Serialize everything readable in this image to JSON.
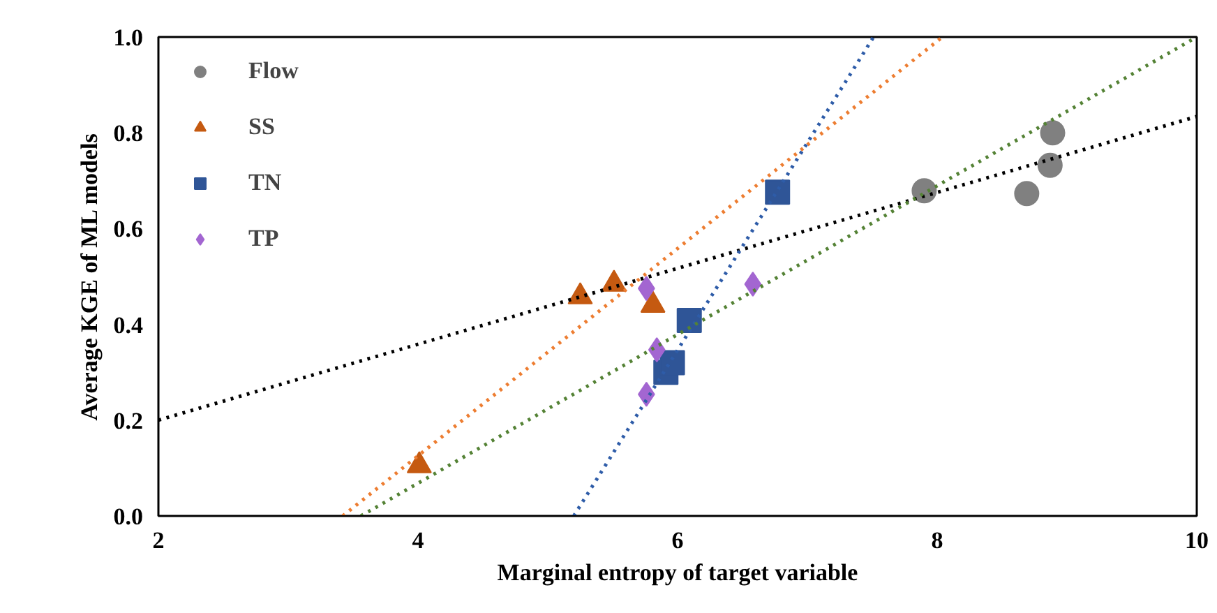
{
  "chart_data": {
    "type": "scatter",
    "xlabel": "Marginal entropy of target variable",
    "ylabel": "Average KGE of ML models",
    "xlim": [
      2,
      10
    ],
    "ylim": [
      0,
      1.0
    ],
    "xticks": [
      2,
      4,
      6,
      8,
      10
    ],
    "yticks": [
      {
        "value": 0,
        "label": "0.0"
      },
      {
        "value": 0.2,
        "label": "0.2"
      },
      {
        "value": 0.4,
        "label": "0.4"
      },
      {
        "value": 0.6,
        "label": "0.6"
      },
      {
        "value": 0.8,
        "label": "0.8"
      },
      {
        "value": 1.0,
        "label": "1.0"
      }
    ],
    "grid": false,
    "legend": "top left",
    "series": [
      {
        "name": "Flow",
        "color": "#808080",
        "marker": "circle",
        "x": [
          7.9,
          8.69,
          8.87,
          8.89
        ],
        "values": [
          0.679,
          0.673,
          0.732,
          0.8
        ]
      },
      {
        "name": "SS",
        "color": "#c55a11",
        "marker": "triangle",
        "x": [
          4.01,
          5.25,
          5.51,
          5.81
        ],
        "values": [
          0.105,
          0.458,
          0.484,
          0.44
        ]
      },
      {
        "name": "TN",
        "color": "#2f5597",
        "marker": "square",
        "x": [
          6.77,
          6.09,
          5.91,
          5.96
        ],
        "values": [
          0.676,
          0.408,
          0.3,
          0.32
        ]
      },
      {
        "name": "TP",
        "color": "#a366d1",
        "marker": "diamond",
        "x": [
          5.76,
          6.58,
          5.84,
          5.76
        ],
        "values": [
          0.475,
          0.484,
          0.347,
          0.254
        ]
      },
      {
        "type": "line",
        "line_style": "dotted",
        "color": "#000000",
        "x": [
          2,
          10
        ],
        "values": [
          0.2,
          0.834
        ]
      },
      {
        "type": "line",
        "line_style": "dotted",
        "color": "#ed7d31",
        "x": [
          3.42,
          8.04
        ],
        "values": [
          0,
          1.0
        ]
      },
      {
        "type": "line",
        "line_style": "dotted",
        "color": "#2e5ca8",
        "x": [
          5.2,
          7.51
        ],
        "values": [
          0,
          1.0
        ]
      },
      {
        "type": "line",
        "line_style": "dotted",
        "color": "#548235",
        "x": [
          3.56,
          10.0
        ],
        "values": [
          0,
          1.0
        ]
      }
    ]
  }
}
